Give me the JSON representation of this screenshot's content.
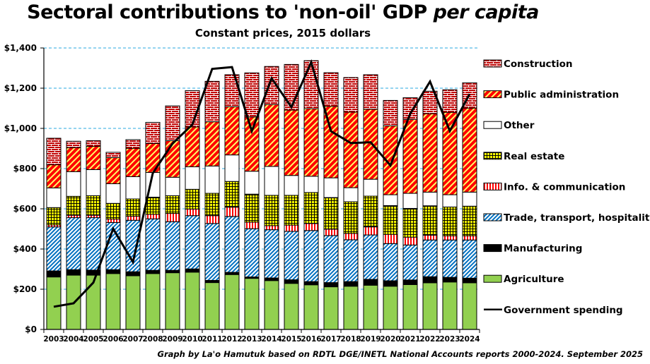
{
  "title_main": "Sectoral contributions to 'non-oil' GDP ",
  "title_italic": "per capita",
  "subtitle": "Constant  prices, 2015 dollars",
  "credit": "Graph by La'o Hamutuk based on RDTL  DGE/INETL National Accounts reports 2000-2024.  September 2025",
  "chart_data": {
    "type": "bar",
    "stacked": true,
    "title": "Sectoral contributions to 'non-oil' GDP per capita",
    "subtitle": "Constant prices, 2015 dollars",
    "xlabel": "",
    "ylabel": "",
    "ylim": [
      0,
      1400
    ],
    "yticks": [
      0,
      200,
      400,
      600,
      800,
      1000,
      1200,
      1400
    ],
    "ytick_labels": [
      "$0",
      "$200",
      "$400",
      "$600",
      "$800",
      "$1,000",
      "$1,200",
      "$1,400"
    ],
    "grid": "horizontal-dashed",
    "legend_position": "right",
    "categories": [
      "2003",
      "2004",
      "2005",
      "2006",
      "2007",
      "2008",
      "2009",
      "2010",
      "2011",
      "2012",
      "2013",
      "2014",
      "2015",
      "2016",
      "2017",
      "2018",
      "2019",
      "2020",
      "2021",
      "2022",
      "2023",
      "2024"
    ],
    "series": [
      {
        "name": "Agriculture",
        "key": "agriculture",
        "color": "#92d050",
        "pattern": "solid",
        "values": [
          261,
          270,
          270,
          278,
          267,
          278,
          282,
          285,
          233,
          273,
          254,
          243,
          229,
          222,
          212,
          215,
          220,
          215,
          223,
          232,
          236,
          232
        ]
      },
      {
        "name": "Manufacturing",
        "key": "manufacturing",
        "color": "#000000",
        "pattern": "solid",
        "values": [
          30,
          27,
          25,
          19,
          20,
          16,
          12,
          16,
          11,
          11,
          7,
          13,
          18,
          16,
          21,
          23,
          29,
          27,
          23,
          30,
          23,
          23
        ]
      },
      {
        "name": "Trade, transport, hospitality",
        "key": "trade",
        "color": "#0070c0",
        "pattern": "diagonal",
        "values": [
          219,
          259,
          261,
          235,
          256,
          256,
          242,
          265,
          283,
          278,
          240,
          240,
          241,
          254,
          234,
          208,
          221,
          185,
          174,
          183,
          186,
          190
        ]
      },
      {
        "name": "Info. & communication",
        "key": "info",
        "color": "#ff0000",
        "pattern": "vertical",
        "values": [
          10,
          12,
          12,
          17,
          20,
          23,
          41,
          33,
          39,
          46,
          33,
          20,
          31,
          35,
          32,
          32,
          40,
          46,
          39,
          24,
          21,
          21
        ]
      },
      {
        "name": "Real estate",
        "key": "realestate",
        "color": "#ffff00",
        "pattern": "grid",
        "values": [
          86,
          94,
          97,
          78,
          86,
          85,
          88,
          98,
          111,
          128,
          139,
          151,
          148,
          154,
          157,
          157,
          153,
          143,
          143,
          146,
          143,
          147
        ]
      },
      {
        "name": "Other",
        "key": "other",
        "color": "#ffffff",
        "pattern": "solid",
        "values": [
          98,
          123,
          130,
          98,
          111,
          123,
          92,
          112,
          136,
          132,
          114,
          144,
          99,
          81,
          98,
          70,
          84,
          54,
          75,
          68,
          61,
          70
        ]
      },
      {
        "name": "Public administration",
        "key": "publicadmin",
        "color": "#ff0000",
        "pattern": "stripes-yellow",
        "values": [
          115,
          119,
          116,
          130,
          141,
          144,
          182,
          198,
          220,
          240,
          270,
          308,
          325,
          336,
          356,
          376,
          348,
          343,
          368,
          390,
          410,
          418
        ]
      },
      {
        "name": "Construction",
        "key": "construction",
        "color": "#c00000",
        "pattern": "brick",
        "values": [
          132,
          32,
          28,
          26,
          43,
          105,
          173,
          181,
          201,
          159,
          219,
          189,
          227,
          239,
          167,
          172,
          172,
          126,
          108,
          112,
          112,
          126
        ]
      }
    ],
    "line_series": {
      "name": "Government spending",
      "color": "#000000",
      "values": [
        113,
        130,
        233,
        501,
        335,
        777,
        925,
        1019,
        1296,
        1305,
        986,
        1249,
        1106,
        1329,
        986,
        927,
        931,
        816,
        1073,
        1233,
        987,
        1171
      ]
    },
    "legend_order": [
      "construction",
      "publicadmin",
      "other",
      "realestate",
      "info",
      "trade",
      "manufacturing",
      "agriculture",
      "line"
    ]
  }
}
